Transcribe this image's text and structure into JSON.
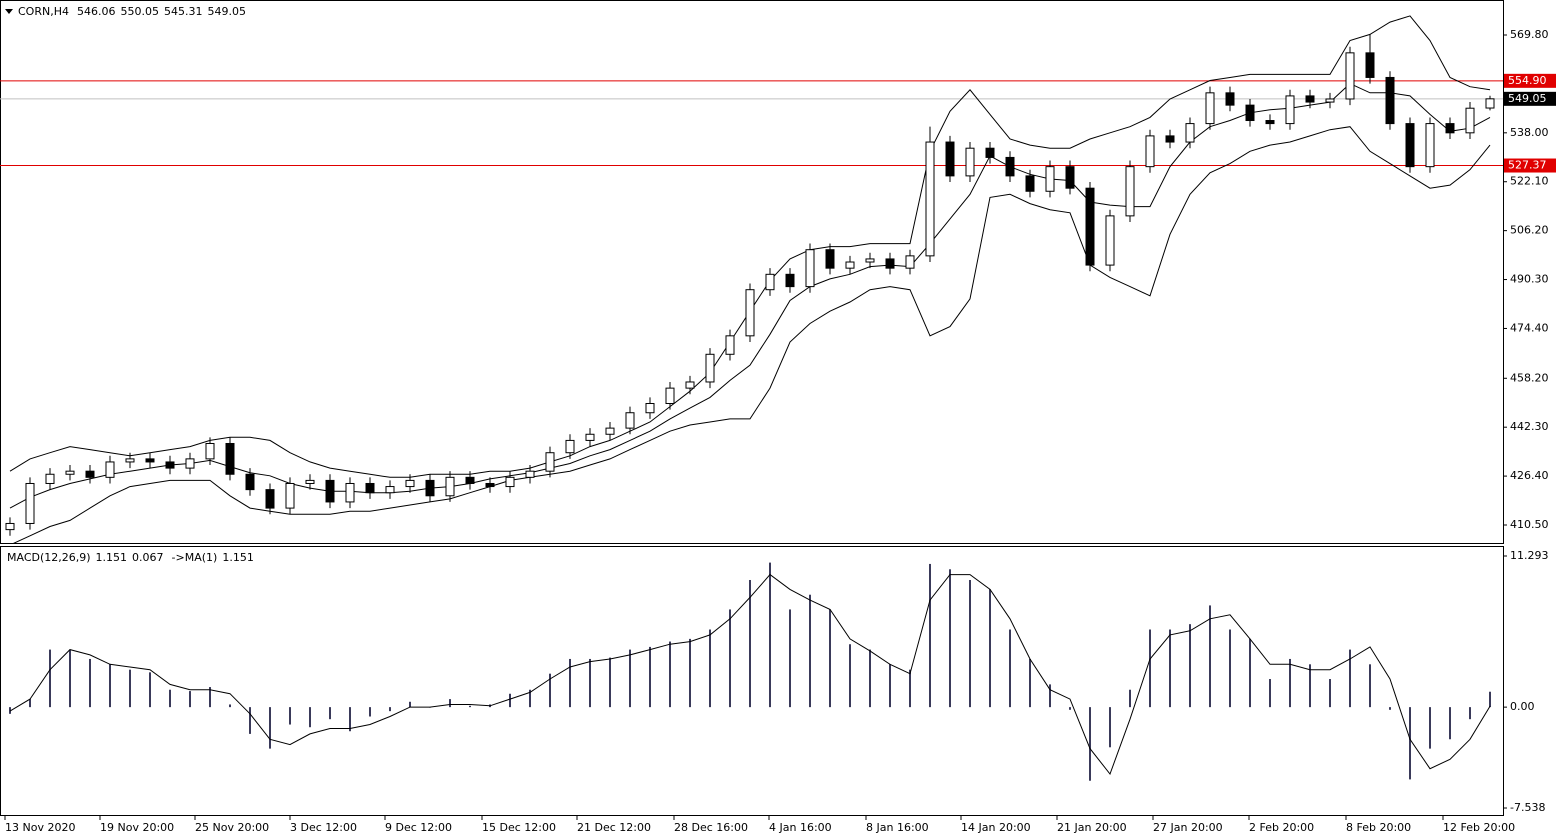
{
  "chart_data": [
    {
      "type": "candlestick",
      "symbol": "CORN,H4",
      "open": [
        409,
        411,
        424,
        427,
        428,
        426,
        431,
        432,
        431,
        429,
        432,
        437,
        427,
        422,
        416,
        424,
        425,
        418,
        424,
        421,
        423,
        425,
        420,
        426,
        424,
        423,
        426,
        428,
        434,
        438,
        440,
        442,
        447,
        450,
        455,
        457,
        466,
        472,
        487,
        492,
        488,
        500,
        494,
        496,
        497,
        494,
        498,
        535,
        524,
        533,
        530,
        524,
        519,
        527,
        520,
        495,
        511,
        527,
        537,
        535,
        541,
        551,
        547,
        542,
        541,
        550,
        548,
        549,
        564,
        556,
        541,
        527,
        541,
        538,
        546.06
      ],
      "high": [
        413,
        426,
        429,
        430,
        430,
        433,
        434,
        434,
        433,
        434,
        439,
        439,
        429,
        424,
        426,
        427,
        427,
        426,
        426,
        425,
        427,
        427,
        428,
        428,
        426,
        428,
        430,
        436,
        440,
        442,
        444,
        449,
        452,
        457,
        459,
        468,
        474,
        489,
        494,
        494,
        502,
        502,
        498,
        499,
        499,
        500,
        540,
        537,
        535,
        535,
        532,
        526,
        529,
        529,
        522,
        513,
        529,
        539,
        539,
        543,
        553,
        553,
        549,
        544,
        552,
        552,
        551,
        566,
        570,
        558,
        543,
        543,
        543,
        548,
        550.05
      ],
      "low": [
        407,
        409,
        422,
        425,
        424,
        424,
        429,
        429,
        427,
        427,
        430,
        425,
        420,
        414,
        414,
        422,
        416,
        416,
        419,
        419,
        421,
        418,
        418,
        422,
        421,
        421,
        424,
        426,
        432,
        436,
        438,
        440,
        445,
        448,
        453,
        455,
        464,
        470,
        485,
        486,
        486,
        492,
        492,
        494,
        492,
        492,
        496,
        522,
        522,
        528,
        522,
        517,
        517,
        518,
        493,
        493,
        509,
        525,
        533,
        533,
        539,
        545,
        540,
        539,
        539,
        546,
        546,
        547,
        554,
        539,
        525,
        525,
        536,
        536,
        545.31
      ],
      "close": [
        411,
        424,
        427,
        428,
        426,
        431,
        432,
        431,
        429,
        432,
        437,
        427,
        422,
        416,
        424,
        425,
        418,
        424,
        421,
        423,
        425,
        420,
        426,
        424,
        423,
        426,
        428,
        434,
        438,
        440,
        442,
        447,
        450,
        455,
        457,
        466,
        472,
        487,
        492,
        488,
        500,
        494,
        496,
        497,
        494,
        498,
        535,
        524,
        533,
        530,
        524,
        519,
        527,
        520,
        495,
        511,
        527,
        537,
        535,
        541,
        551,
        547,
        542,
        541,
        550,
        548,
        549,
        564,
        556,
        541,
        527,
        541,
        538,
        546,
        549.05
      ],
      "bands": {
        "upper": [
          428,
          432,
          434,
          436,
          435,
          434,
          433,
          434,
          435,
          436,
          438,
          439,
          439,
          438,
          434,
          431,
          429,
          428,
          427,
          426,
          426,
          427,
          427,
          427,
          428,
          428,
          429,
          431,
          433,
          436,
          438,
          441,
          444,
          449,
          454,
          460,
          470,
          480,
          490,
          497,
          500,
          501,
          501,
          502,
          502,
          502,
          532,
          545,
          552,
          544,
          536,
          534,
          533,
          533,
          536,
          538,
          540,
          543,
          549,
          552,
          555,
          556,
          557,
          557,
          557,
          557,
          557,
          568,
          570,
          574,
          576,
          568,
          556,
          553,
          552
        ],
        "middle": [
          416,
          419.5,
          422,
          424,
          425.5,
          427,
          428,
          429,
          430,
          430.5,
          431.5,
          429.5,
          427.5,
          426.5,
          424,
          422.5,
          421.5,
          421.5,
          421,
          421,
          421.5,
          422.5,
          423,
          424,
          425.5,
          426.5,
          427.5,
          429,
          430.5,
          433,
          435,
          438,
          441,
          445,
          448.5,
          452,
          457.5,
          462.5,
          472.5,
          483.5,
          488,
          490.5,
          492,
          494.5,
          495,
          494.5,
          502,
          510,
          518,
          530.5,
          527,
          524.5,
          523,
          522.5,
          515.5,
          514.5,
          514,
          514,
          527,
          535,
          540,
          542,
          544.5,
          545.5,
          546,
          547,
          548,
          554,
          551,
          551,
          550,
          544,
          538.5,
          539.5,
          543
        ],
        "lower": [
          404,
          407,
          410,
          412,
          416,
          420,
          423,
          424,
          425,
          425,
          425,
          420,
          416,
          415,
          414,
          414,
          414,
          415,
          415,
          416,
          417,
          418,
          419,
          421,
          423,
          425,
          426,
          427,
          428,
          430,
          432,
          435,
          438,
          441,
          443,
          444,
          445,
          445,
          455,
          470,
          476,
          480,
          483,
          487,
          488,
          487,
          472,
          475,
          484,
          517,
          518,
          515,
          513,
          512,
          495,
          491,
          488,
          485,
          505,
          518,
          525,
          528,
          532,
          534,
          535,
          537,
          539,
          540,
          532,
          528,
          524,
          520,
          521,
          526,
          534
        ],
        "color": "#000000"
      },
      "ylim": [
        404.65,
        581.18
      ],
      "yticks": [
        {
          "value": 569.8,
          "label": "569.80"
        },
        {
          "value": 538,
          "label": "538.00"
        },
        {
          "value": 522.1,
          "label": "522.10"
        },
        {
          "value": 506.2,
          "label": "506.20"
        },
        {
          "value": 490.3,
          "label": "490.30"
        },
        {
          "value": 474.4,
          "label": "474.40"
        },
        {
          "value": 458.2,
          "label": "458.20"
        },
        {
          "value": 442.3,
          "label": "442.30"
        },
        {
          "value": 426.4,
          "label": "426.40"
        },
        {
          "value": 410.5,
          "label": "410.50"
        }
      ],
      "levels": [
        {
          "value": 554.9,
          "label": "554.90"
        },
        {
          "value": 527.37,
          "label": "527.37"
        }
      ],
      "level_color": "#e00000"
    },
    {
      "type": "macd",
      "label": "MACD(12,26,9)",
      "ma_label": "->MA(1)",
      "histogram": [
        -0.5,
        0.6,
        4.3,
        4.3,
        3.6,
        3.2,
        2.8,
        2.6,
        1.3,
        1.2,
        1.5,
        0.2,
        -2.0,
        -3.1,
        -1.3,
        -1.5,
        -0.9,
        -1.8,
        -0.7,
        -0.3,
        0.4,
        0,
        0.6,
        0.1,
        0.2,
        1.0,
        1.3,
        2.5,
        3.6,
        3.6,
        3.7,
        4.3,
        4.5,
        4.9,
        5.1,
        5.8,
        7.3,
        9.5,
        10.8,
        7.3,
        8.4,
        7.3,
        4.7,
        4.3,
        3.2,
        2.8,
        10.7,
        10.3,
        9.5,
        8.8,
        5.8,
        3.6,
        1.7,
        -0.2,
        -5.5,
        -3.0,
        1.3,
        5.8,
        5.8,
        6.2,
        7.6,
        5.8,
        5.1,
        2.1,
        3.6,
        3.2,
        2.1,
        4.3,
        3.2,
        -0.2,
        -5.4,
        -3.1,
        -2.4,
        -0.9,
        1.151
      ],
      "signal": [
        -0.3,
        0.6,
        2.8,
        4.3,
        3.9,
        3.2,
        3.0,
        2.8,
        1.7,
        1.3,
        1.3,
        1.0,
        -0.5,
        -2.4,
        -2.8,
        -2.0,
        -1.6,
        -1.6,
        -1.3,
        -0.7,
        0,
        0,
        0.2,
        0.2,
        0.1,
        0.6,
        1.1,
        2.1,
        3.0,
        3.4,
        3.6,
        3.9,
        4.3,
        4.7,
        4.9,
        5.4,
        6.6,
        8.2,
        9.9,
        8.8,
        8.0,
        7.3,
        5.1,
        4.2,
        3.2,
        2.5,
        8.0,
        9.9,
        9.9,
        8.8,
        6.6,
        3.6,
        1.3,
        0.6,
        -3.1,
        -5.0,
        -0.9,
        3.6,
        5.4,
        5.7,
        6.6,
        6.9,
        5.1,
        3.2,
        3.2,
        2.8,
        2.8,
        3.6,
        4.5,
        2.1,
        -2.4,
        -4.6,
        -3.9,
        -2.4,
        0.067
      ],
      "histogram_color": "#3a3a5a",
      "signal_color": "#000000",
      "ylim": [
        -8.06,
        12.04
      ],
      "yticks": [
        11.293,
        {
          "value": 0,
          "label": "0.00"
        },
        -7.538
      ],
      "xlim": [
        -0.5,
        74.65
      ],
      "xticks": [
        {
          "value": -0.25,
          "label": "13 Nov 2020"
        },
        {
          "value": 4.5,
          "label": "19 Nov 20:00"
        },
        {
          "value": 9.25,
          "label": "25 Nov 20:00"
        },
        {
          "value": 14,
          "label": "3 Dec 12:00"
        },
        {
          "value": 18.75,
          "label": "9 Dec 12:00"
        },
        {
          "value": 23.6,
          "label": "15 Dec 12:00"
        },
        {
          "value": 28.35,
          "label": "21 Dec 12:00"
        },
        {
          "value": 33.2,
          "label": "28 Dec 16:00"
        },
        {
          "value": 37.95,
          "label": "4 Jan 16:00"
        },
        {
          "value": 42.8,
          "label": "8 Jan 16:00"
        },
        {
          "value": 47.55,
          "label": "14 Jan 20:00"
        },
        {
          "value": 52.35,
          "label": "21 Jan 20:00"
        },
        {
          "value": 57.15,
          "label": "27 Jan 20:00"
        },
        {
          "value": 61.95,
          "label": "2 Feb 20:00"
        },
        {
          "value": 66.8,
          "label": "8 Feb 20:00"
        },
        {
          "value": 71.65,
          "label": "12 Feb 20:00"
        }
      ]
    }
  ]
}
